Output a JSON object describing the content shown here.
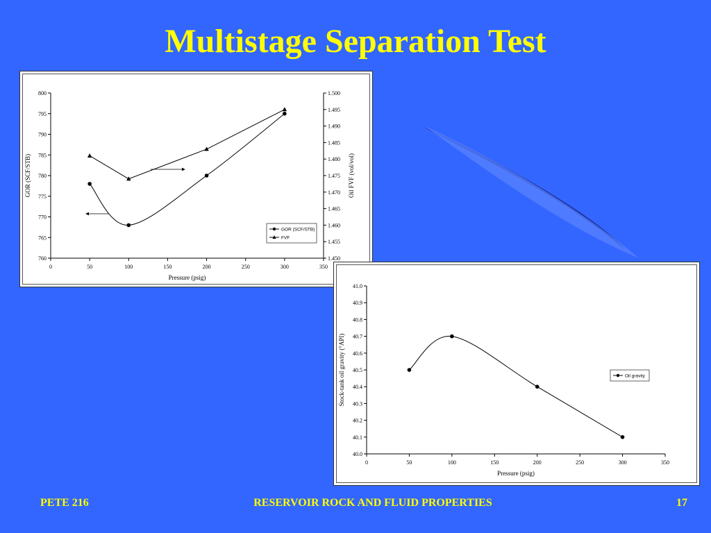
{
  "slide": {
    "title": "Multistage Separation Test",
    "footer_left": "PETE 216",
    "footer_center": "RESERVOIR ROCK AND FLUID PROPERTIES",
    "footer_right": "17"
  },
  "colors": {
    "background": "#3366ff",
    "title": "#ffff00",
    "swoosh_dark": "#1a2f9e",
    "swoosh_light": "#5a84ff"
  },
  "chart_data": [
    {
      "type": "line",
      "xlabel": "Pressure (psig)",
      "ylabel": "GOR (SCF/STB)",
      "y2label": "Oil FVF (vol/vol)",
      "xlim": [
        0,
        350
      ],
      "ylim": [
        760,
        800
      ],
      "y2lim": [
        1.45,
        1.5
      ],
      "x_ticks": [
        "0",
        "50",
        "100",
        "150",
        "200",
        "250",
        "300",
        "350"
      ],
      "y_ticks": [
        "760",
        "765",
        "770",
        "775",
        "780",
        "785",
        "790",
        "795",
        "800"
      ],
      "y2_ticks": [
        "1.450",
        "1.455",
        "1.460",
        "1.465",
        "1.470",
        "1.475",
        "1.480",
        "1.485",
        "1.490",
        "1.495",
        "1.500"
      ],
      "grid": false,
      "legend_position": "bottom-right",
      "series": [
        {
          "name": "GOR (SCF/STB)",
          "axis": "left",
          "marker": "circle",
          "smooth": true,
          "x": [
            50,
            100,
            200,
            300
          ],
          "y": [
            778,
            768,
            780,
            795
          ]
        },
        {
          "name": "FVF",
          "axis": "right",
          "marker": "triangle",
          "smooth": false,
          "x": [
            50,
            100,
            200,
            300
          ],
          "y": [
            1.481,
            1.474,
            1.483,
            1.495
          ]
        }
      ]
    },
    {
      "type": "line",
      "xlabel": "Pressure (psig)",
      "ylabel": "Stock-tank oil gravity (°API)",
      "xlim": [
        0,
        350
      ],
      "ylim": [
        40.0,
        41.0
      ],
      "x_ticks": [
        "0",
        "50",
        "100",
        "150",
        "200",
        "250",
        "300",
        "350"
      ],
      "y_ticks": [
        "40.0",
        "40.1",
        "40.2",
        "40.3",
        "40.4",
        "40.5",
        "40.6",
        "40.7",
        "40.8",
        "40.9",
        "41.0"
      ],
      "grid": false,
      "legend_position": "right",
      "series": [
        {
          "name": "Oil gravity",
          "marker": "circle",
          "smooth": true,
          "x": [
            50,
            100,
            200,
            300
          ],
          "y": [
            40.5,
            40.7,
            40.4,
            40.1
          ]
        }
      ]
    }
  ]
}
